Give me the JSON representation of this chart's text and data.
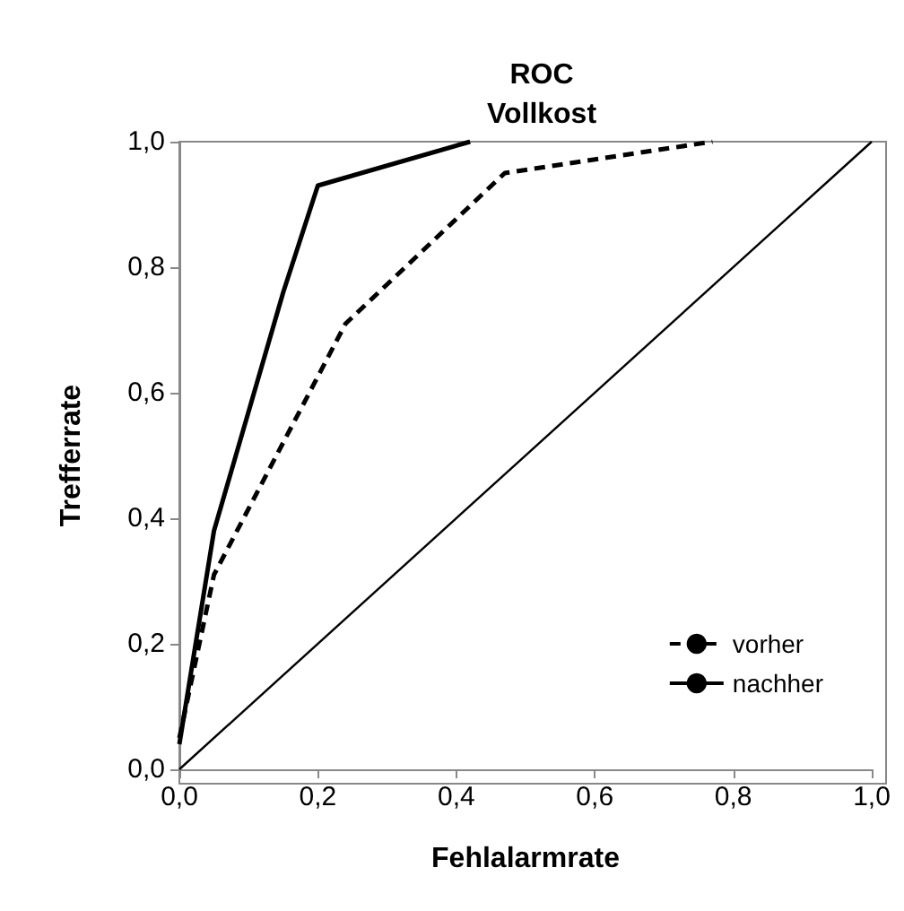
{
  "chart_data": {
    "type": "line",
    "title": "ROC\nVollkost",
    "xlabel": "Fehlalarmrate",
    "ylabel": "Trefferrate",
    "xlim": [
      0,
      1
    ],
    "ylim": [
      0,
      1
    ],
    "xticks": [
      {
        "value": 0,
        "label": "0,0"
      },
      {
        "value": 0.2,
        "label": "0,2"
      },
      {
        "value": 0.4,
        "label": "0,4"
      },
      {
        "value": 0.6,
        "label": "0,6"
      },
      {
        "value": 0.8,
        "label": "0,8"
      },
      {
        "value": 1,
        "label": "1,0"
      }
    ],
    "yticks": [
      {
        "value": 0,
        "label": "0,0"
      },
      {
        "value": 0.2,
        "label": "0,2"
      },
      {
        "value": 0.4,
        "label": "0,4"
      },
      {
        "value": 0.6,
        "label": "0,6"
      },
      {
        "value": 0.8,
        "label": "0,8"
      },
      {
        "value": 1,
        "label": "1,0"
      }
    ],
    "grid": false,
    "legend": "bottom right",
    "marker": "none",
    "series": [
      {
        "name": "vorher",
        "color": "#000000",
        "line_style": "dashed",
        "x": [
          0,
          0.05,
          0.24,
          0.47,
          0.77
        ],
        "values": [
          0.05,
          0.31,
          0.71,
          0.95,
          1
        ]
      },
      {
        "name": "nachher",
        "color": "#000000",
        "line_style": "solid",
        "x": [
          0,
          0.05,
          0.15,
          0.2,
          0.42
        ],
        "values": [
          0.04,
          0.38,
          0.76,
          0.93,
          1
        ]
      },
      {
        "color": "#000000",
        "line_style": "solid",
        "x": [
          0,
          1
        ],
        "values": [
          0,
          1
        ]
      }
    ]
  }
}
